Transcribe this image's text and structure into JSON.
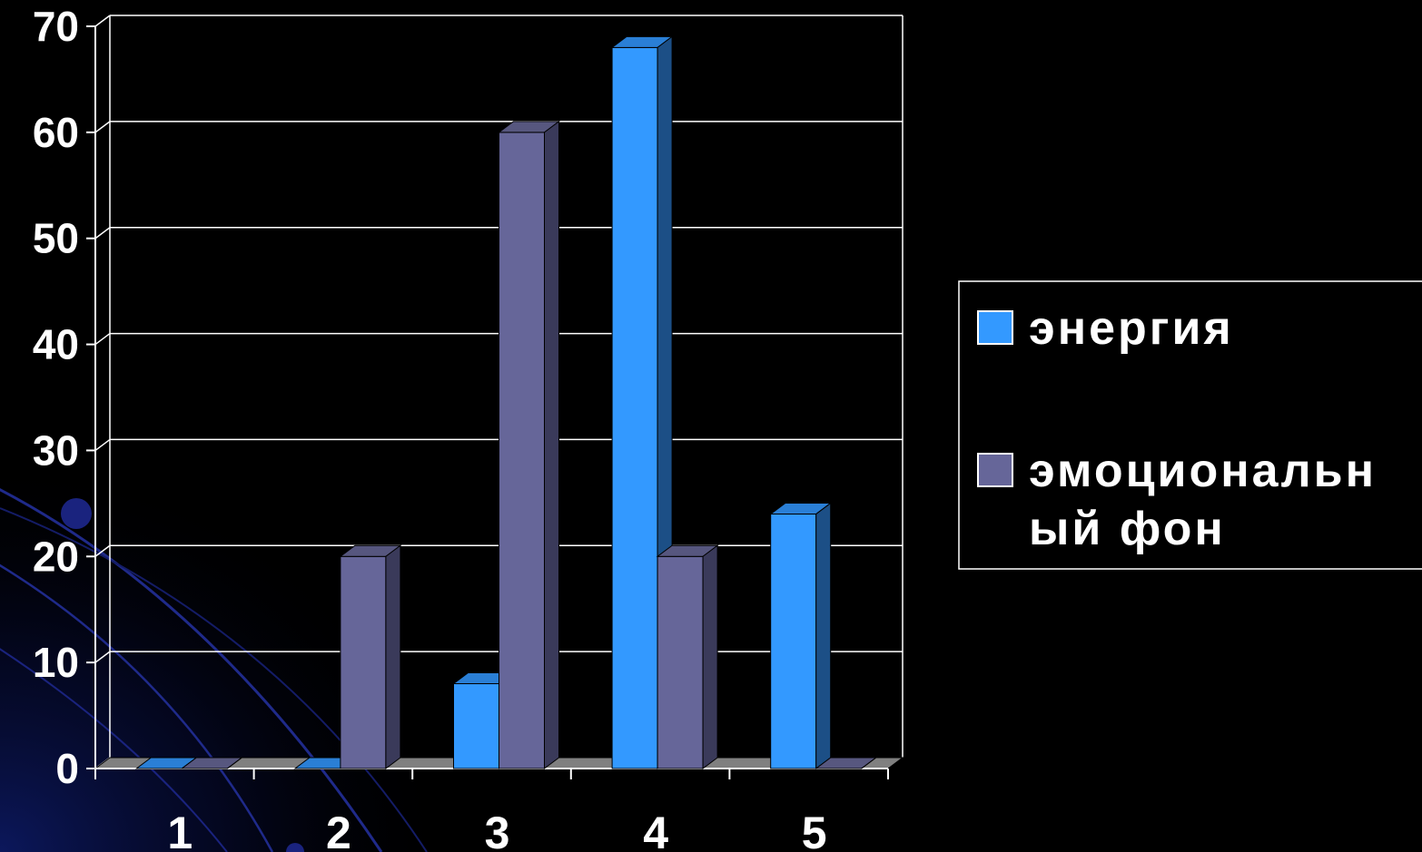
{
  "chart_data": {
    "type": "bar",
    "style": "3d-clustered-column",
    "title": "",
    "xlabel": "",
    "ylabel": "",
    "categories": [
      "1",
      "2",
      "3",
      "4",
      "5"
    ],
    "ylim": [
      0,
      70
    ],
    "yticks": [
      "0",
      "10",
      "20",
      "30",
      "40",
      "50",
      "60",
      "70"
    ],
    "grid": true,
    "legend_position": "right",
    "series": [
      {
        "name": "энергия",
        "values": [
          0,
          0,
          8,
          68,
          24
        ],
        "color": "#3399ff",
        "top_color": "#2a7fd6",
        "side_color": "#1c4f86"
      },
      {
        "name": "эмоциональный фон",
        "legend_lines": [
          "эмоциональн",
          "ый фон"
        ],
        "values": [
          0,
          20,
          60,
          20,
          0
        ],
        "color": "#666699",
        "top_color": "#57577f",
        "side_color": "#3a3a5a"
      }
    ]
  },
  "colors": {
    "background": "#000000",
    "gridline": "#ffffff",
    "floor": "#808080",
    "text": "#ffffff",
    "decor_arc": "#1a237e"
  }
}
